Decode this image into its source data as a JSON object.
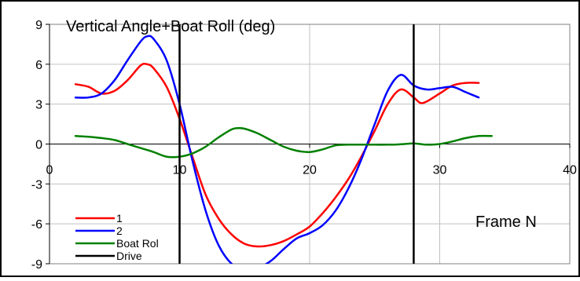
{
  "chart_data": {
    "type": "line",
    "title": "Vertical Angle+Boat Roll (deg)",
    "xlabel": "Frame N",
    "ylabel": "",
    "xlim": [
      0,
      40
    ],
    "ylim": [
      -9,
      9
    ],
    "x_ticks": [
      0,
      10,
      20,
      30,
      40
    ],
    "y_ticks": [
      -9,
      -6,
      -3,
      0,
      3,
      6,
      9
    ],
    "x_tick_labels": [
      "0",
      "10",
      "20",
      "30",
      "40"
    ],
    "y_tick_labels": [
      "-9",
      "-6",
      "-3",
      "0",
      "3",
      "6",
      "9"
    ],
    "grid": true,
    "legend_position": "bottom-left",
    "series": [
      {
        "name": "1",
        "color": "#ff0000",
        "points": [
          [
            2,
            4.5
          ],
          [
            3,
            4.3
          ],
          [
            4,
            3.8
          ],
          [
            5,
            4.0
          ],
          [
            6,
            4.8
          ],
          [
            7,
            5.9
          ],
          [
            7.5,
            6.0
          ],
          [
            8,
            5.7
          ],
          [
            9,
            4.3
          ],
          [
            10,
            1.9
          ],
          [
            11,
            -1.0
          ],
          [
            12,
            -3.8
          ],
          [
            13,
            -5.6
          ],
          [
            14,
            -6.8
          ],
          [
            15,
            -7.5
          ],
          [
            16,
            -7.7
          ],
          [
            17,
            -7.6
          ],
          [
            18,
            -7.3
          ],
          [
            19,
            -6.8
          ],
          [
            20,
            -6.2
          ],
          [
            21,
            -5.2
          ],
          [
            22,
            -4.0
          ],
          [
            23,
            -2.6
          ],
          [
            24,
            -0.9
          ],
          [
            25,
            1.0
          ],
          [
            26,
            3.0
          ],
          [
            27,
            4.1
          ],
          [
            28,
            3.5
          ],
          [
            28.5,
            3.1
          ],
          [
            29,
            3.2
          ],
          [
            30,
            3.8
          ],
          [
            31,
            4.4
          ],
          [
            32,
            4.6
          ],
          [
            33,
            4.6
          ]
        ]
      },
      {
        "name": "2",
        "color": "#0000ff",
        "points": [
          [
            2,
            3.5
          ],
          [
            3,
            3.5
          ],
          [
            4,
            3.8
          ],
          [
            5,
            4.8
          ],
          [
            6,
            6.3
          ],
          [
            7,
            7.7
          ],
          [
            7.5,
            8.1
          ],
          [
            8,
            7.9
          ],
          [
            9,
            6.3
          ],
          [
            10,
            3.0
          ],
          [
            11,
            -1.3
          ],
          [
            12,
            -5.0
          ],
          [
            13,
            -7.6
          ],
          [
            14,
            -9.0
          ],
          [
            15,
            -9.4
          ],
          [
            16,
            -9.3
          ],
          [
            17,
            -8.8
          ],
          [
            18,
            -7.9
          ],
          [
            19,
            -7.1
          ],
          [
            20,
            -6.7
          ],
          [
            21,
            -6.1
          ],
          [
            22,
            -5.0
          ],
          [
            23,
            -3.3
          ],
          [
            24,
            -1.1
          ],
          [
            25,
            1.5
          ],
          [
            26,
            4.0
          ],
          [
            27,
            5.2
          ],
          [
            28,
            4.4
          ],
          [
            29,
            4.1
          ],
          [
            30,
            4.2
          ],
          [
            31,
            4.3
          ],
          [
            32,
            3.9
          ],
          [
            33,
            3.5
          ]
        ]
      },
      {
        "name": "Boat Rol",
        "color": "#008000",
        "points": [
          [
            2,
            0.6
          ],
          [
            3,
            0.55
          ],
          [
            4,
            0.45
          ],
          [
            5,
            0.3
          ],
          [
            6,
            0.0
          ],
          [
            7,
            -0.3
          ],
          [
            8,
            -0.6
          ],
          [
            9,
            -0.95
          ],
          [
            10,
            -0.95
          ],
          [
            11,
            -0.7
          ],
          [
            12,
            -0.2
          ],
          [
            13,
            0.5
          ],
          [
            14,
            1.1
          ],
          [
            14.5,
            1.2
          ],
          [
            15,
            1.15
          ],
          [
            16,
            0.8
          ],
          [
            17,
            0.3
          ],
          [
            18,
            -0.2
          ],
          [
            19,
            -0.5
          ],
          [
            20,
            -0.6
          ],
          [
            21,
            -0.4
          ],
          [
            22,
            -0.1
          ],
          [
            23,
            -0.05
          ],
          [
            24,
            -0.05
          ],
          [
            25,
            -0.05
          ],
          [
            26,
            -0.05
          ],
          [
            27,
            -0.02
          ],
          [
            28,
            0.05
          ],
          [
            29,
            -0.05
          ],
          [
            30,
            0.0
          ],
          [
            31,
            0.2
          ],
          [
            32,
            0.45
          ],
          [
            33,
            0.6
          ],
          [
            34,
            0.6
          ]
        ]
      },
      {
        "name": "Drive",
        "color": "#000000",
        "vertical_lines_x": [
          10,
          28
        ]
      }
    ]
  }
}
